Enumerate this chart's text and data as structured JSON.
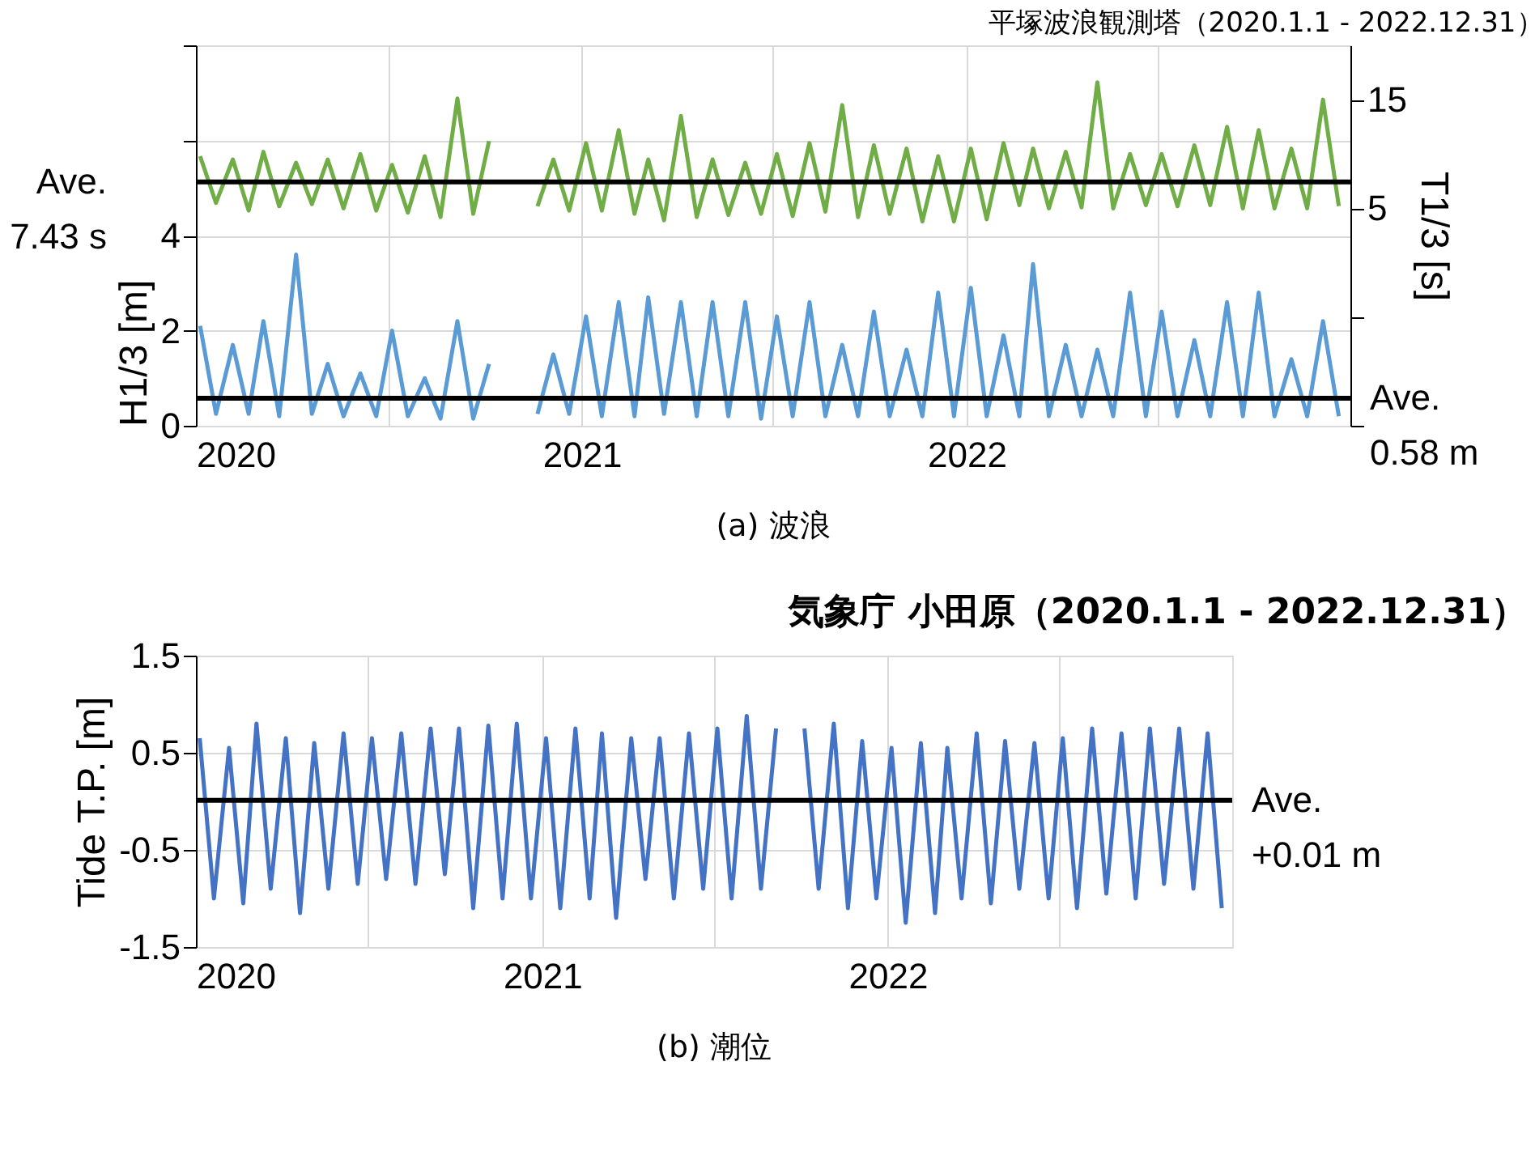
{
  "chart_data": [
    {
      "type": "line",
      "subtitle": "平塚波浪観測塔（2020.1.1 - 2022.12.31）",
      "ylabel": "H1/3 [m]",
      "y2label": "T1/3 [s]",
      "x": [
        "2020-01-05",
        "2020-01-20",
        "2020-02-05",
        "2020-02-20",
        "2020-03-05",
        "2020-03-20",
        "2020-04-05",
        "2020-04-20",
        "2020-05-05",
        "2020-05-20",
        "2020-06-05",
        "2020-06-20",
        "2020-07-05",
        "2020-07-20",
        "2020-08-05",
        "2020-08-20",
        "2020-09-05",
        "2020-09-20",
        "2020-10-05",
        "2020-10-20",
        "2020-11-05",
        "2020-11-20",
        "2020-12-05",
        "2020-12-20",
        "2021-01-05",
        "2021-01-20",
        "2021-02-05",
        "2021-02-20",
        "2021-03-05",
        "2021-03-20",
        "2021-04-05",
        "2021-04-20",
        "2021-05-05",
        "2021-05-20",
        "2021-06-05",
        "2021-06-20",
        "2021-07-05",
        "2021-07-20",
        "2021-08-05",
        "2021-08-20",
        "2021-09-05",
        "2021-09-20",
        "2021-10-05",
        "2021-10-20",
        "2021-11-05",
        "2021-11-20",
        "2021-12-05",
        "2021-12-20",
        "2022-01-05",
        "2022-01-20",
        "2022-02-05",
        "2022-02-20",
        "2022-03-05",
        "2022-03-20",
        "2022-04-05",
        "2022-04-20",
        "2022-05-05",
        "2022-05-20",
        "2022-06-05",
        "2022-06-20",
        "2022-07-05",
        "2022-07-20",
        "2022-08-05",
        "2022-08-20",
        "2022-09-05",
        "2022-09-20",
        "2022-10-05",
        "2022-10-20",
        "2022-11-05",
        "2022-11-20",
        "2022-12-05",
        "2022-12-20"
      ],
      "series": [
        {
          "color": "#70ad47",
          "axis": "y2",
          "values": [
            9.8,
            5.5,
            9.5,
            4.8,
            10.2,
            5.2,
            9.2,
            5.4,
            9.5,
            5.0,
            10.0,
            4.8,
            9.0,
            4.6,
            9.8,
            4.2,
            15.1,
            4.5,
            11.2,
            null,
            null,
            5.2,
            9.5,
            4.8,
            11.0,
            4.8,
            12.2,
            4.5,
            9.5,
            3.9,
            13.5,
            4.2,
            9.5,
            4.4,
            9.2,
            4.5,
            10.0,
            4.3,
            11.0,
            4.7,
            14.5,
            4.2,
            10.8,
            4.5,
            10.5,
            3.8,
            9.8,
            3.8,
            10.5,
            4.0,
            11.0,
            5.3,
            10.5,
            5.0,
            10.2,
            5.1,
            16.6,
            5.0,
            10.0,
            5.3,
            10.0,
            5.2,
            10.8,
            5.3,
            12.5,
            5.0,
            12.2,
            5.0,
            10.5,
            5.0,
            15.0,
            5.2
          ]
        },
        {
          "color": "#5b9bd5",
          "values": [
            2.1,
            0.25,
            1.7,
            0.25,
            2.2,
            0.2,
            3.6,
            0.25,
            1.3,
            0.2,
            1.1,
            0.2,
            2.0,
            0.2,
            1.0,
            0.15,
            2.2,
            0.15,
            1.3,
            null,
            null,
            0.25,
            1.5,
            0.25,
            2.3,
            0.2,
            2.6,
            0.2,
            2.7,
            0.25,
            2.6,
            0.2,
            2.6,
            0.2,
            2.6,
            0.15,
            2.3,
            0.2,
            2.6,
            0.2,
            1.7,
            0.2,
            2.4,
            0.2,
            1.6,
            0.2,
            2.8,
            0.2,
            2.9,
            0.2,
            1.9,
            0.2,
            3.4,
            0.2,
            1.7,
            0.2,
            1.6,
            0.2,
            2.8,
            0.2,
            2.4,
            0.2,
            1.8,
            0.2,
            2.6,
            0.2,
            2.8,
            0.2,
            1.4,
            0.2,
            2.2,
            0.2
          ]
        }
      ],
      "xlim": [
        "2020-01-01",
        "2022-12-31"
      ],
      "xticks": [
        {
          "value": "2020-01-01",
          "label": "2020"
        },
        {
          "value": "2020-07-01",
          "label": null
        },
        {
          "value": "2021-01-01",
          "label": "2021"
        },
        {
          "value": "2021-07-01",
          "label": null
        },
        {
          "value": "2022-01-01",
          "label": "2022"
        },
        {
          "value": "2022-07-01",
          "label": null
        }
      ],
      "ylim": [
        0,
        8
      ],
      "yticks": [
        0,
        2,
        4,
        {
          "value": 6,
          "label": null
        },
        {
          "value": 8,
          "label": null
        }
      ],
      "y2lim": [
        -15,
        20
      ],
      "y2ticks": [
        {
          "value": -15,
          "label": null
        },
        {
          "value": -5,
          "label": null
        },
        5,
        15
      ],
      "ref_lines": [
        {
          "axis": "y2",
          "value": 7.43,
          "label": "Ave.\n7.43 s",
          "color": "#000000"
        },
        {
          "axis": "y",
          "value": 0.58,
          "label": "Ave.\n0.58 m",
          "color": "#000000"
        }
      ],
      "annotations": [
        "(a) 波浪"
      ],
      "grid": true
    },
    {
      "type": "line",
      "title": "気象庁 小田原（2020.1.1 - 2022.12.31）",
      "ylabel": "Tide T.P. [m]",
      "x": [
        "2020-01-05",
        "2020-01-20",
        "2020-02-05",
        "2020-02-20",
        "2020-03-05",
        "2020-03-20",
        "2020-04-05",
        "2020-04-20",
        "2020-05-05",
        "2020-05-20",
        "2020-06-05",
        "2020-06-20",
        "2020-07-05",
        "2020-07-20",
        "2020-08-05",
        "2020-08-20",
        "2020-09-05",
        "2020-09-20",
        "2020-10-05",
        "2020-10-20",
        "2020-11-05",
        "2020-11-20",
        "2020-12-05",
        "2020-12-20",
        "2021-01-05",
        "2021-01-20",
        "2021-02-05",
        "2021-02-20",
        "2021-03-05",
        "2021-03-20",
        "2021-04-05",
        "2021-04-20",
        "2021-05-05",
        "2021-05-20",
        "2021-06-05",
        "2021-06-20",
        "2021-07-05",
        "2021-07-20",
        "2021-08-05",
        "2021-08-20",
        "2021-09-05",
        "2021-09-20",
        "2021-10-05",
        "2021-10-20",
        "2021-11-05",
        "2021-11-20",
        "2021-12-05",
        "2021-12-20",
        "2022-01-05",
        "2022-01-20",
        "2022-02-05",
        "2022-02-20",
        "2022-03-05",
        "2022-03-20",
        "2022-04-05",
        "2022-04-20",
        "2022-05-05",
        "2022-05-20",
        "2022-06-05",
        "2022-06-20",
        "2022-07-05",
        "2022-07-20",
        "2022-08-05",
        "2022-08-20",
        "2022-09-05",
        "2022-09-20",
        "2022-10-05",
        "2022-10-20",
        "2022-11-05",
        "2022-11-20",
        "2022-12-05",
        "2022-12-20"
      ],
      "series": [
        {
          "color": "#4472c4",
          "values": [
            0.65,
            -1.0,
            0.55,
            -1.05,
            0.8,
            -0.9,
            0.65,
            -1.15,
            0.6,
            -0.9,
            0.7,
            -0.85,
            0.65,
            -0.8,
            0.7,
            -0.85,
            0.75,
            -0.75,
            0.75,
            -1.1,
            0.78,
            -1.0,
            0.8,
            -1.0,
            0.65,
            -1.1,
            0.75,
            -1.0,
            0.7,
            -1.2,
            0.65,
            -0.8,
            0.65,
            -1.0,
            0.7,
            -0.9,
            0.75,
            -1.0,
            0.88,
            -0.9,
            0.75,
            null,
            0.75,
            -0.9,
            0.8,
            -1.1,
            0.62,
            -1.0,
            0.55,
            -1.25,
            0.6,
            -1.15,
            0.55,
            -1.0,
            0.7,
            -1.05,
            0.62,
            -0.9,
            0.6,
            -1.0,
            0.65,
            -1.1,
            0.75,
            -0.95,
            0.7,
            -1.0,
            0.75,
            -0.85,
            0.75,
            -0.9,
            0.7,
            -1.1
          ]
        }
      ],
      "xlim": [
        "2020-01-01",
        "2022-12-31"
      ],
      "xticks": [
        {
          "value": "2020-01-01",
          "label": "2020"
        },
        {
          "value": "2020-07-01",
          "label": null
        },
        {
          "value": "2021-01-01",
          "label": "2021"
        },
        {
          "value": "2021-07-01",
          "label": null
        },
        {
          "value": "2022-01-01",
          "label": "2022"
        },
        {
          "value": "2022-07-01",
          "label": null
        }
      ],
      "ylim": [
        -1.5,
        1.5
      ],
      "yticks": [
        -1.5,
        -0.5,
        0.5,
        1.5
      ],
      "ref_lines": [
        {
          "axis": "y",
          "value": 0.01,
          "label": "Ave.\n+0.01 m",
          "color": "#000000"
        }
      ],
      "annotations": [
        "(b) 潮位"
      ],
      "grid": true
    }
  ]
}
